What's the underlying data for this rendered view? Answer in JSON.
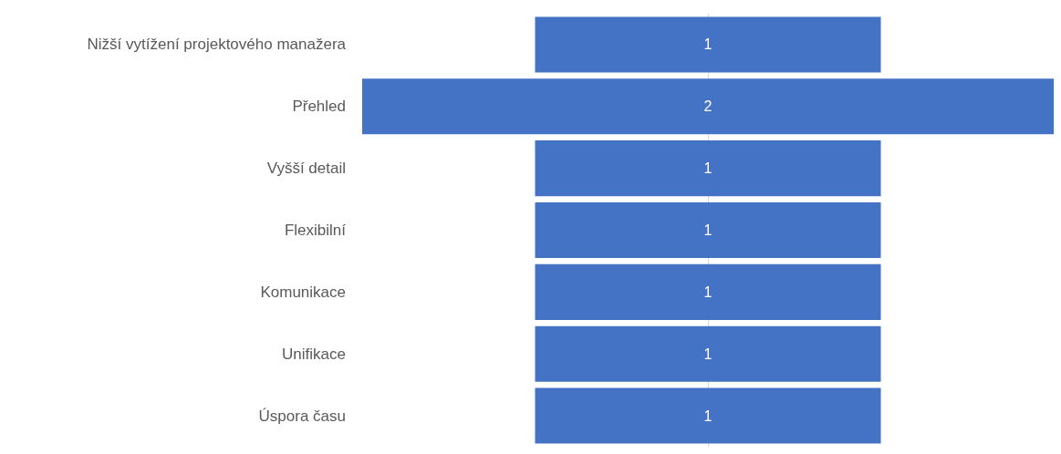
{
  "chart_data": {
    "type": "other",
    "categories": [
      "Nižší vytížení projektového manažera",
      "Přehled",
      "Vyšší detail",
      "Flexibilní",
      "Komunikace",
      "Unifikace",
      "Úspora času"
    ],
    "values": [
      1,
      2,
      1,
      1,
      1,
      1,
      1
    ],
    "color": "#4472c4",
    "data_labels": true
  }
}
